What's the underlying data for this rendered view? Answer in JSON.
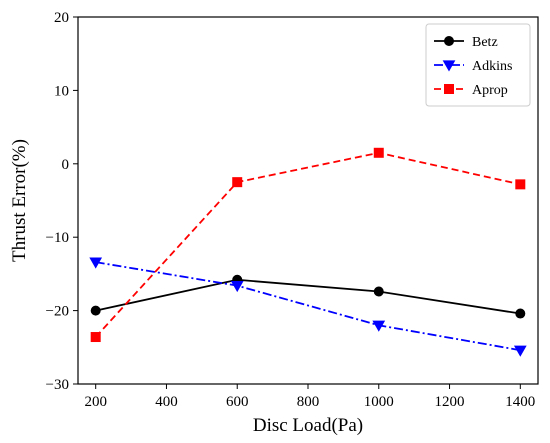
{
  "chart_data": {
    "type": "line",
    "title": "",
    "xlabel": "Disc Load(Pa)",
    "ylabel": "Thrust Error(%)",
    "xlim": [
      150,
      1450
    ],
    "ylim": [
      -30,
      20
    ],
    "xticks": [
      200,
      400,
      600,
      800,
      1000,
      1200,
      1400
    ],
    "yticks": [
      -30,
      -20,
      -10,
      0,
      10,
      20
    ],
    "xtick_labels": [
      "200",
      "400",
      "600",
      "800",
      "1000",
      "1200",
      "1400"
    ],
    "ytick_labels": [
      "−30",
      "−20",
      "−10",
      "0",
      "10",
      "20"
    ],
    "grid": false,
    "legend_position": "top-right",
    "x": [
      200,
      600,
      1000,
      1400
    ],
    "series": [
      {
        "name": "Betz",
        "values": [
          -20.0,
          -15.8,
          -17.4,
          -20.4
        ],
        "color": "#000000",
        "marker": "circle",
        "linestyle": "solid"
      },
      {
        "name": "Adkins",
        "values": [
          -13.4,
          -16.6,
          -22.0,
          -25.4
        ],
        "color": "#0000ff",
        "marker": "triangle-down",
        "linestyle": "dashdot"
      },
      {
        "name": "Aprop",
        "values": [
          -23.6,
          -2.5,
          1.5,
          -2.8
        ],
        "color": "#ff0000",
        "marker": "square",
        "linestyle": "dashed"
      }
    ]
  }
}
